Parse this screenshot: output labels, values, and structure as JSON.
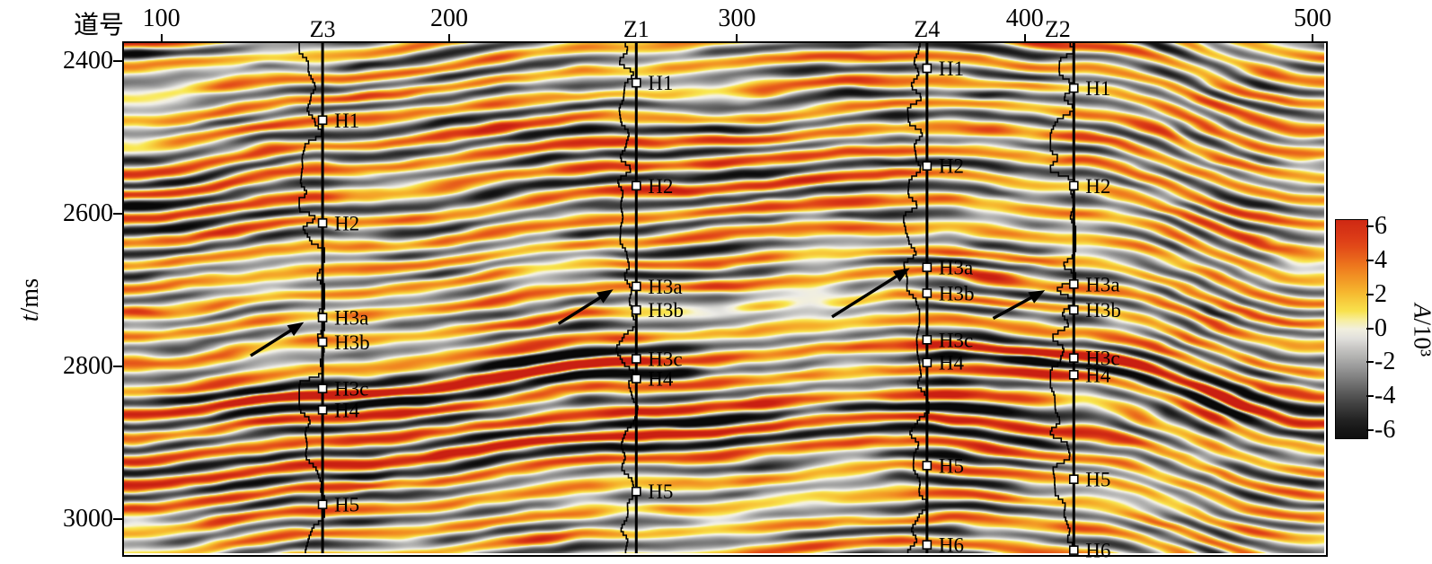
{
  "chart_data": {
    "type": "heatmap",
    "description": "Seismic amplitude section (time domain) crossed by four well tracks with picked horizons; arrows point at horizon H3a",
    "x": {
      "label": "道号",
      "ticks": [
        100,
        200,
        300,
        400,
        500
      ],
      "range": [
        87,
        504
      ]
    },
    "y": {
      "symbol": "t",
      "unit": "/ms",
      "ticks": [
        2400,
        2600,
        2800,
        3000
      ],
      "range": [
        2376,
        3045
      ]
    },
    "colorbar": {
      "symbol": "A",
      "unit": "/10³",
      "ticks": [
        6,
        4,
        2,
        0,
        -2,
        -4,
        -6
      ],
      "vmin": -7,
      "vmax": 7,
      "gradient_stops": [
        {
          "v": 7,
          "c": "#c81e12"
        },
        {
          "v": 5,
          "c": "#e04318"
        },
        {
          "v": 3.6,
          "c": "#ef7c1e"
        },
        {
          "v": 2.2,
          "c": "#f6b62e"
        },
        {
          "v": 0.9,
          "c": "#f9e852"
        },
        {
          "v": 0.25,
          "c": "#f7f3d8"
        },
        {
          "v": -0.3,
          "c": "#ecebe6"
        },
        {
          "v": -1.2,
          "c": "#c3c3c1"
        },
        {
          "v": -2.5,
          "c": "#8f8f8f"
        },
        {
          "v": -4,
          "c": "#4f4f4f"
        },
        {
          "v": -5.5,
          "c": "#1d1d1d"
        },
        {
          "v": -7,
          "c": "#070707"
        }
      ]
    },
    "wells": [
      {
        "name": "Z3",
        "trace": 156,
        "horizons": [
          [
            "H1",
            2477
          ],
          [
            "H2",
            2612
          ],
          [
            "H3a",
            2736
          ],
          [
            "H3b",
            2768
          ],
          [
            "H3c",
            2829
          ],
          [
            "H4",
            2857
          ],
          [
            "H5",
            2981
          ]
        ]
      },
      {
        "name": "Z1",
        "trace": 265,
        "horizons": [
          [
            "H1",
            2428
          ],
          [
            "H2",
            2563
          ],
          [
            "H3a",
            2695
          ],
          [
            "H3b",
            2726
          ],
          [
            "H3c",
            2790
          ],
          [
            "H4",
            2816
          ],
          [
            "H5",
            2964
          ]
        ]
      },
      {
        "name": "Z4",
        "trace": 366,
        "horizons": [
          [
            "H1",
            2409
          ],
          [
            "H2",
            2537
          ],
          [
            "H3a",
            2670
          ],
          [
            "H3b",
            2704
          ],
          [
            "H3c",
            2765
          ],
          [
            "H4",
            2795
          ],
          [
            "H5",
            2930
          ],
          [
            "H6",
            3034
          ]
        ]
      },
      {
        "name": "Z2",
        "trace": 417,
        "horizons": [
          [
            "H1",
            2435
          ],
          [
            "H2",
            2563
          ],
          [
            "H3a",
            2692
          ],
          [
            "H3b",
            2726
          ],
          [
            "H3c",
            2789
          ],
          [
            "H4",
            2811
          ],
          [
            "H5",
            2948
          ],
          [
            "H6",
            3041
          ]
        ]
      }
    ],
    "arrows": [
      {
        "target": "Z3-H3a",
        "from": [
          131,
          2786
        ],
        "to": [
          149.5,
          2742
        ]
      },
      {
        "target": "Z1-H3a",
        "from": [
          238,
          2744
        ],
        "to": [
          257,
          2699
        ]
      },
      {
        "target": "Z4-H3a",
        "from": [
          333,
          2735
        ],
        "to": [
          360,
          2671
        ]
      },
      {
        "target": "Z2-H3a",
        "from": [
          389,
          2737
        ],
        "to": [
          407,
          2700
        ]
      }
    ]
  }
}
